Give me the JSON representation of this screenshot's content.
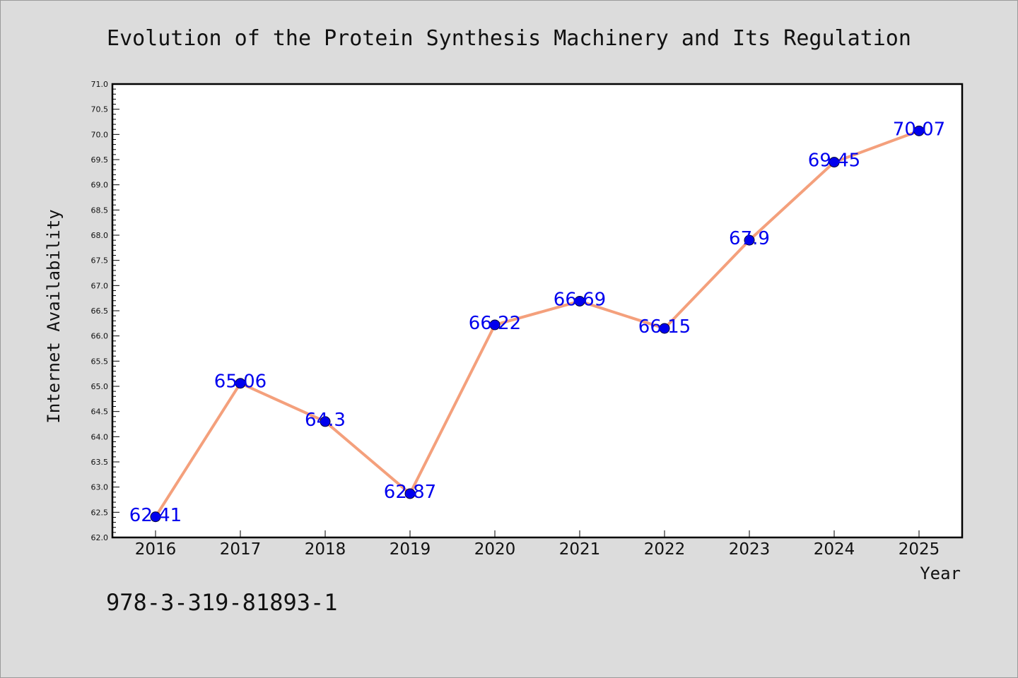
{
  "chart_data": {
    "type": "line",
    "title": "Evolution of the Protein Synthesis Machinery and Its Regulation",
    "xlabel": "Year",
    "ylabel": "Internet Availability",
    "categories": [
      "2016",
      "2017",
      "2018",
      "2019",
      "2020",
      "2021",
      "2022",
      "2023",
      "2024",
      "2025"
    ],
    "series": [
      {
        "values": [
          62.41,
          65.06,
          64.3,
          62.87,
          66.22,
          66.69,
          66.15,
          67.9,
          69.45,
          70.07
        ],
        "labels": [
          "62.41",
          "65.06",
          "64.3",
          "62.87",
          "66.22",
          "66.69",
          "66.15",
          "67.9",
          "69.45",
          "70.07"
        ]
      }
    ],
    "ylim": [
      62.0,
      71.0
    ],
    "ytick_labels": [
      "62.0",
      "62.5",
      "63.0",
      "63.5",
      "64.0",
      "64.5",
      "65.0",
      "65.5",
      "66.0",
      "66.5",
      "67.0",
      "67.5",
      "68.0",
      "68.5",
      "69.0",
      "69.5",
      "70.0",
      "70.5",
      "71.0"
    ],
    "grid": false,
    "legend": "none",
    "colors": {
      "line": "#f4a07c",
      "marker": "#0000ee",
      "data_label": "#0000ee",
      "background": "#dcdcdc",
      "plot_area": "#ffffff"
    }
  },
  "footer": {
    "isbn": "978-3-319-81893-1"
  }
}
